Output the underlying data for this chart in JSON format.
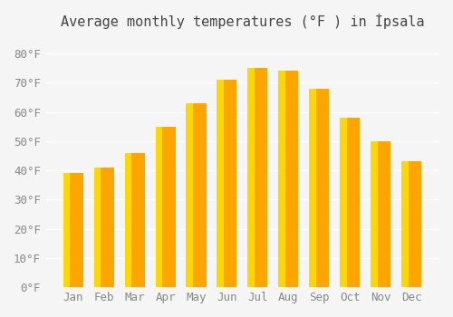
{
  "months": [
    "Jan",
    "Feb",
    "Mar",
    "Apr",
    "May",
    "Jun",
    "Jul",
    "Aug",
    "Sep",
    "Oct",
    "Nov",
    "Dec"
  ],
  "values": [
    39,
    41,
    46,
    55,
    63,
    71,
    75,
    74,
    68,
    58,
    50,
    43
  ],
  "bar_color_main": "#FFA500",
  "bar_color_gradient_top": "#FFD700",
  "title": "Average monthly temperatures (°F ) in İpsala",
  "ylim": [
    0,
    85
  ],
  "ytick_step": 10,
  "background_color": "#f5f5f5",
  "grid_color": "#ffffff",
  "title_fontsize": 11,
  "tick_fontsize": 9
}
